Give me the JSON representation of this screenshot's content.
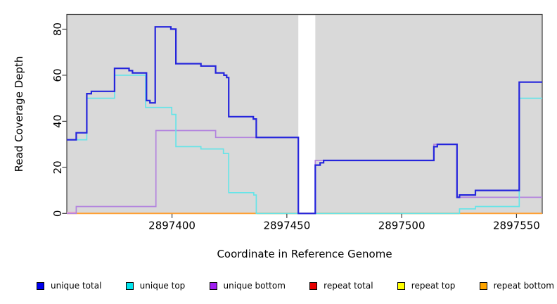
{
  "figure": {
    "background": "#ffffff",
    "plot_background": "#d9d9d9",
    "border_color": "#3c3c3c",
    "text_color": "#000000"
  },
  "chart_data": {
    "type": "step-line",
    "title": "",
    "xlabel": "Coordinate in Reference Genome",
    "ylabel": "Read Coverage Depth",
    "xlim": [
      2897354.2,
      2897561.2
    ],
    "ylim": [
      0,
      86.4
    ],
    "xticks": [
      2897400,
      2897450,
      2897500,
      2897550
    ],
    "yticks": [
      0,
      20,
      40,
      60,
      80
    ],
    "grid": false,
    "legend_position": "bottom",
    "no_coverage_gap": {
      "x_from": 2897455.0,
      "x_to": 2897462.4,
      "fill": "#ffffff"
    },
    "series": [
      {
        "key": "unique_total",
        "label": "unique total",
        "legend_color": "#0000ee",
        "line_color": "#2525dc",
        "line_width": 2.2,
        "z": 9,
        "points": [
          [
            2897354.2,
            32
          ],
          [
            2897358.3,
            35
          ],
          [
            2897362.9,
            52
          ],
          [
            2897364.9,
            53
          ],
          [
            2897375.0,
            63
          ],
          [
            2897381.3,
            62
          ],
          [
            2897382.8,
            61
          ],
          [
            2897388.9,
            49
          ],
          [
            2897390.4,
            48
          ],
          [
            2897392.7,
            81
          ],
          [
            2897399.5,
            80
          ],
          [
            2897401.7,
            65
          ],
          [
            2897412.6,
            64
          ],
          [
            2897419.0,
            61
          ],
          [
            2897422.6,
            60
          ],
          [
            2897423.8,
            59
          ],
          [
            2897424.7,
            42
          ],
          [
            2897435.4,
            41
          ],
          [
            2897436.7,
            33
          ],
          [
            2897455.0,
            0
          ],
          [
            2897462.4,
            21
          ],
          [
            2897464.5,
            22
          ],
          [
            2897466.0,
            23
          ],
          [
            2897514.0,
            29
          ],
          [
            2897515.5,
            30
          ],
          [
            2897524.1,
            7
          ],
          [
            2897525.2,
            8
          ],
          [
            2897532.1,
            10
          ],
          [
            2897551.2,
            57
          ]
        ]
      },
      {
        "key": "unique_top",
        "label": "unique top",
        "legend_color": "#00e5ee",
        "line_color": "#66e4e8",
        "line_width": 1.7,
        "z": 8,
        "points": [
          [
            2897354.2,
            32
          ],
          [
            2897362.9,
            50
          ],
          [
            2897375.0,
            60
          ],
          [
            2897388.5,
            46
          ],
          [
            2897399.9,
            43
          ],
          [
            2897401.7,
            29
          ],
          [
            2897412.6,
            28
          ],
          [
            2897422.4,
            26
          ],
          [
            2897424.7,
            9
          ],
          [
            2897435.6,
            8
          ],
          [
            2897436.7,
            0
          ],
          [
            2897525.2,
            2
          ],
          [
            2897532.1,
            3
          ],
          [
            2897551.2,
            50
          ]
        ]
      },
      {
        "key": "unique_bottom",
        "label": "unique bottom",
        "legend_color": "#a020f0",
        "line_color": "#b383de",
        "line_width": 1.7,
        "z": 7,
        "points": [
          [
            2897354.2,
            0
          ],
          [
            2897358.3,
            3
          ],
          [
            2897393.0,
            36
          ],
          [
            2897419.0,
            33
          ],
          [
            2897455.0,
            0
          ],
          [
            2897462.4,
            23
          ],
          [
            2897514.0,
            30
          ],
          [
            2897524.1,
            7
          ]
        ]
      },
      {
        "key": "repeat_total",
        "label": "repeat total",
        "legend_color": "#e60000",
        "line_color": "#e60000",
        "line_width": 1.5,
        "z": 1,
        "points": [
          [
            2897354.2,
            0
          ]
        ]
      },
      {
        "key": "repeat_top",
        "label": "repeat top",
        "legend_color": "#ffff00",
        "line_color": "#ffff00",
        "line_width": 1.5,
        "z": 2,
        "points": [
          [
            2897354.2,
            0
          ]
        ]
      },
      {
        "key": "repeat_bottom",
        "label": "repeat bottom",
        "legend_color": "#ffa500",
        "line_color": "#ffa033",
        "line_width": 2.0,
        "z": 3,
        "points": [
          [
            2897354.2,
            0
          ]
        ]
      }
    ],
    "baseline_blend_segments": [
      {
        "note": "unique bottom at 0 drawn over repeat bottom",
        "color": "#e8a9c9",
        "x_from": 2897354.2,
        "x_to": 2897358.3,
        "y": 0.5,
        "line_width": 1.7,
        "z": 4
      },
      {
        "note": "unique top at 0 drawn over repeat bottom",
        "color": "#74c27c",
        "x_from": 2897436.9,
        "x_to": 2897455.0,
        "y": 0,
        "line_width": 1.7,
        "z": 5
      },
      {
        "note": "unique top at 0 drawn over repeat bottom",
        "color": "#74c27c",
        "x_from": 2897462.4,
        "x_to": 2897525.2,
        "y": 0,
        "line_width": 1.7,
        "z": 6
      }
    ]
  }
}
